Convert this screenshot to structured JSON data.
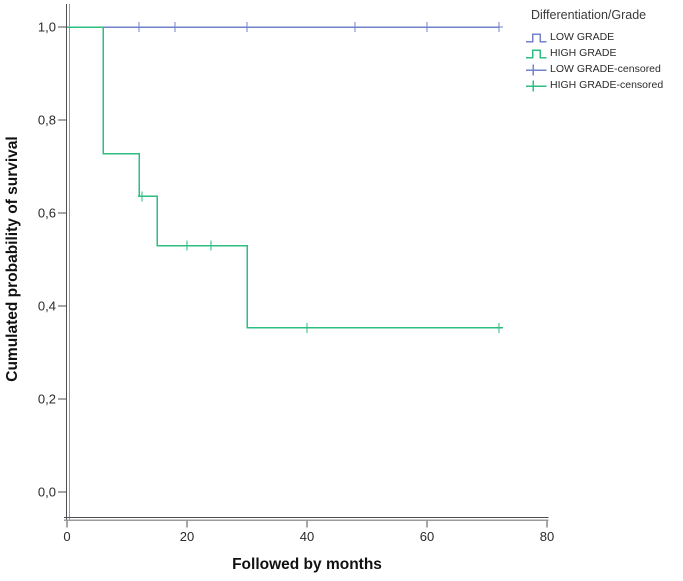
{
  "chart_data": {
    "type": "line",
    "subtype": "kaplan-meier-step-plot",
    "title": "",
    "xlabel": "Followed by months",
    "ylabel": "Cumulated probability of survival",
    "xlim": [
      0,
      80
    ],
    "ylim": [
      0,
      1.0
    ],
    "grid": false,
    "decimal_separator": ",",
    "xticks": [
      {
        "v": 0,
        "label": "0"
      },
      {
        "v": 20,
        "label": "20"
      },
      {
        "v": 40,
        "label": "40"
      },
      {
        "v": 60,
        "label": "60"
      },
      {
        "v": 80,
        "label": "80"
      }
    ],
    "yticks": [
      {
        "v": 0.0,
        "label": "0,0"
      },
      {
        "v": 0.2,
        "label": "0,2"
      },
      {
        "v": 0.4,
        "label": "0,4"
      },
      {
        "v": 0.6,
        "label": "0,6"
      },
      {
        "v": 0.8,
        "label": "0,8"
      },
      {
        "v": 1.0,
        "label": "1,0"
      }
    ],
    "series": [
      {
        "name": "LOW GRADE",
        "color": "#7382CB",
        "points": [
          [
            0,
            1.0
          ],
          [
            72,
            1.0
          ]
        ],
        "censored": [
          [
            12,
            1.0
          ],
          [
            18,
            1.0
          ],
          [
            30,
            1.0
          ],
          [
            48,
            1.0
          ],
          [
            60,
            1.0
          ],
          [
            72,
            1.0
          ]
        ]
      },
      {
        "name": "HIGH GRADE",
        "color": "#2EBE80",
        "points": [
          [
            0,
            1.0
          ],
          [
            6,
            1.0
          ],
          [
            6,
            0.727
          ],
          [
            12,
            0.727
          ],
          [
            12,
            0.636
          ],
          [
            15,
            0.636
          ],
          [
            15,
            0.53
          ],
          [
            30,
            0.53
          ],
          [
            30,
            0.353
          ],
          [
            72,
            0.353
          ]
        ],
        "censored": [
          [
            12.5,
            0.636
          ],
          [
            20,
            0.53
          ],
          [
            24,
            0.53
          ],
          [
            40,
            0.353
          ],
          [
            72,
            0.353
          ]
        ]
      }
    ],
    "legend": {
      "title": "Differentiation/Grade",
      "position": "top-right",
      "entries": [
        {
          "label": "LOW GRADE",
          "color": "#7382CB",
          "symbol": "step"
        },
        {
          "label": "HIGH GRADE",
          "color": "#2EBE80",
          "symbol": "step"
        },
        {
          "label": "LOW GRADE-censored",
          "color": "#7382CB",
          "symbol": "plus"
        },
        {
          "label": "HIGH GRADE-censored",
          "color": "#2EBE80",
          "symbol": "plus"
        }
      ]
    },
    "axis_color": "#4e4f52",
    "axis_shadow_color": "#9a9b9e",
    "text_color": "#2b2b2b"
  }
}
